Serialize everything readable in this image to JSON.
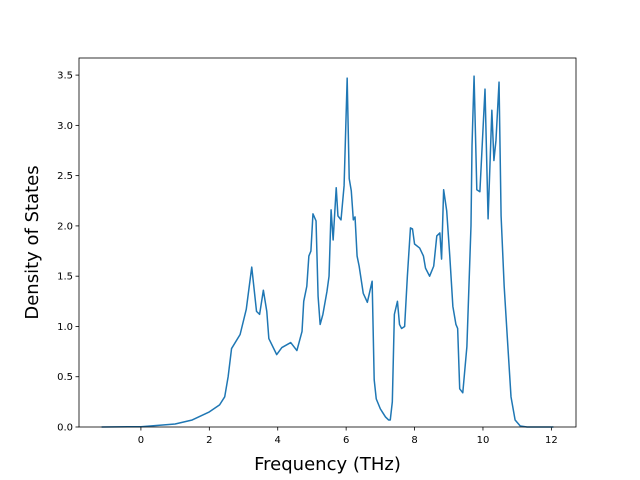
{
  "chart_data": {
    "type": "line",
    "xlabel": "Frequency (THz)",
    "ylabel": "Density of States",
    "x": [
      -1.15,
      0,
      1.0,
      1.5,
      2.0,
      2.3,
      2.45,
      2.55,
      2.65,
      2.9,
      3.08,
      3.24,
      3.38,
      3.47,
      3.58,
      3.68,
      3.74,
      3.97,
      4.12,
      4.38,
      4.56,
      4.71,
      4.76,
      4.85,
      4.91,
      4.97,
      5.03,
      5.12,
      5.18,
      5.24,
      5.32,
      5.44,
      5.5,
      5.56,
      5.62,
      5.71,
      5.76,
      5.85,
      5.94,
      6.03,
      6.09,
      6.15,
      6.21,
      6.26,
      6.32,
      6.38,
      6.5,
      6.62,
      6.76,
      6.82,
      6.88,
      7.0,
      7.15,
      7.24,
      7.29,
      7.35,
      7.41,
      7.5,
      7.56,
      7.62,
      7.71,
      7.79,
      7.88,
      7.94,
      8.0,
      8.15,
      8.26,
      8.32,
      8.44,
      8.56,
      8.65,
      8.74,
      8.79,
      8.85,
      8.94,
      9.03,
      9.12,
      9.21,
      9.26,
      9.32,
      9.41,
      9.53,
      9.65,
      9.68,
      9.74,
      9.82,
      9.91,
      10.06,
      10.15,
      10.26,
      10.32,
      10.38,
      10.47,
      10.53,
      10.62,
      10.71,
      10.82,
      10.94,
      11.09,
      11.29,
      12.06
    ],
    "series": [
      {
        "color": "#1f77b4",
        "values": [
          0,
          0.003,
          0.03,
          0.07,
          0.15,
          0.22,
          0.3,
          0.5,
          0.78,
          0.92,
          1.17,
          1.59,
          1.15,
          1.12,
          1.36,
          1.15,
          0.88,
          0.72,
          0.79,
          0.84,
          0.76,
          0.95,
          1.25,
          1.4,
          1.7,
          1.75,
          2.12,
          2.05,
          1.3,
          1.02,
          1.12,
          1.35,
          1.5,
          2.16,
          1.86,
          2.38,
          2.1,
          2.06,
          2.4,
          3.47,
          2.47,
          2.35,
          2.06,
          2.09,
          1.7,
          1.6,
          1.33,
          1.24,
          1.45,
          0.47,
          0.28,
          0.18,
          0.1,
          0.07,
          0.07,
          0.25,
          1.12,
          1.25,
          1.02,
          0.98,
          1.0,
          1.5,
          1.98,
          1.97,
          1.82,
          1.78,
          1.7,
          1.58,
          1.5,
          1.6,
          1.9,
          1.93,
          1.67,
          2.36,
          2.15,
          1.7,
          1.2,
          1.02,
          0.98,
          0.38,
          0.34,
          0.8,
          2.0,
          2.8,
          3.49,
          2.36,
          2.34,
          3.36,
          2.07,
          3.15,
          2.65,
          2.85,
          3.43,
          2.1,
          1.4,
          0.9,
          0.3,
          0.07,
          0.01,
          0,
          0
        ]
      }
    ],
    "xlim": [
      -1.81,
      12.72
    ],
    "ylim": [
      0,
      3.67
    ],
    "xticks": [
      0,
      2,
      4,
      6,
      8,
      10,
      12
    ],
    "yticks": [
      {
        "value": 0,
        "label": "0.0"
      },
      {
        "value": 0.5,
        "label": "0.5"
      },
      {
        "value": 1,
        "label": "1.0"
      },
      {
        "value": 1.5,
        "label": "1.5"
      },
      {
        "value": 2,
        "label": "2.0"
      },
      {
        "value": 2.5,
        "label": "2.5"
      },
      {
        "value": 3,
        "label": "3.0"
      },
      {
        "value": 3.5,
        "label": "3.5"
      }
    ]
  }
}
